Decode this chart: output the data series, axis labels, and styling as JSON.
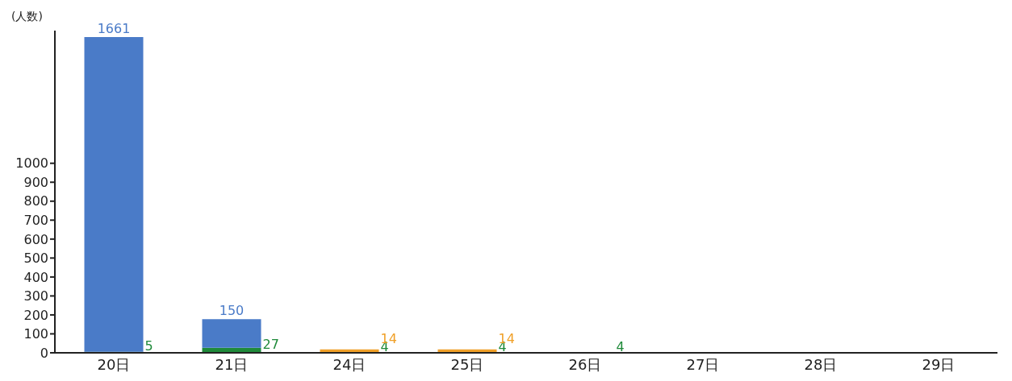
{
  "chart_data": {
    "type": "bar",
    "ylabel": "(人数)",
    "categories": [
      "20日",
      "21日",
      "24日",
      "25日",
      "26日",
      "27日",
      "28日",
      "29日"
    ],
    "stacked": true,
    "data_labels": true,
    "grid": false,
    "legend": false,
    "series": [
      {
        "color": "#1f8a3a",
        "values": [
          5,
          27,
          4,
          4,
          4,
          null,
          null,
          null
        ]
      },
      {
        "color": "#f0a028",
        "values": [
          null,
          null,
          14,
          14,
          null,
          null,
          null,
          null
        ]
      },
      {
        "color": "#4a7bc8",
        "values": [
          1661,
          150,
          null,
          null,
          null,
          null,
          null,
          null
        ]
      }
    ],
    "ylim": [
      0,
      1700
    ],
    "yticks": [
      0,
      100,
      200,
      300,
      400,
      500,
      600,
      700,
      800,
      900,
      1000
    ]
  }
}
